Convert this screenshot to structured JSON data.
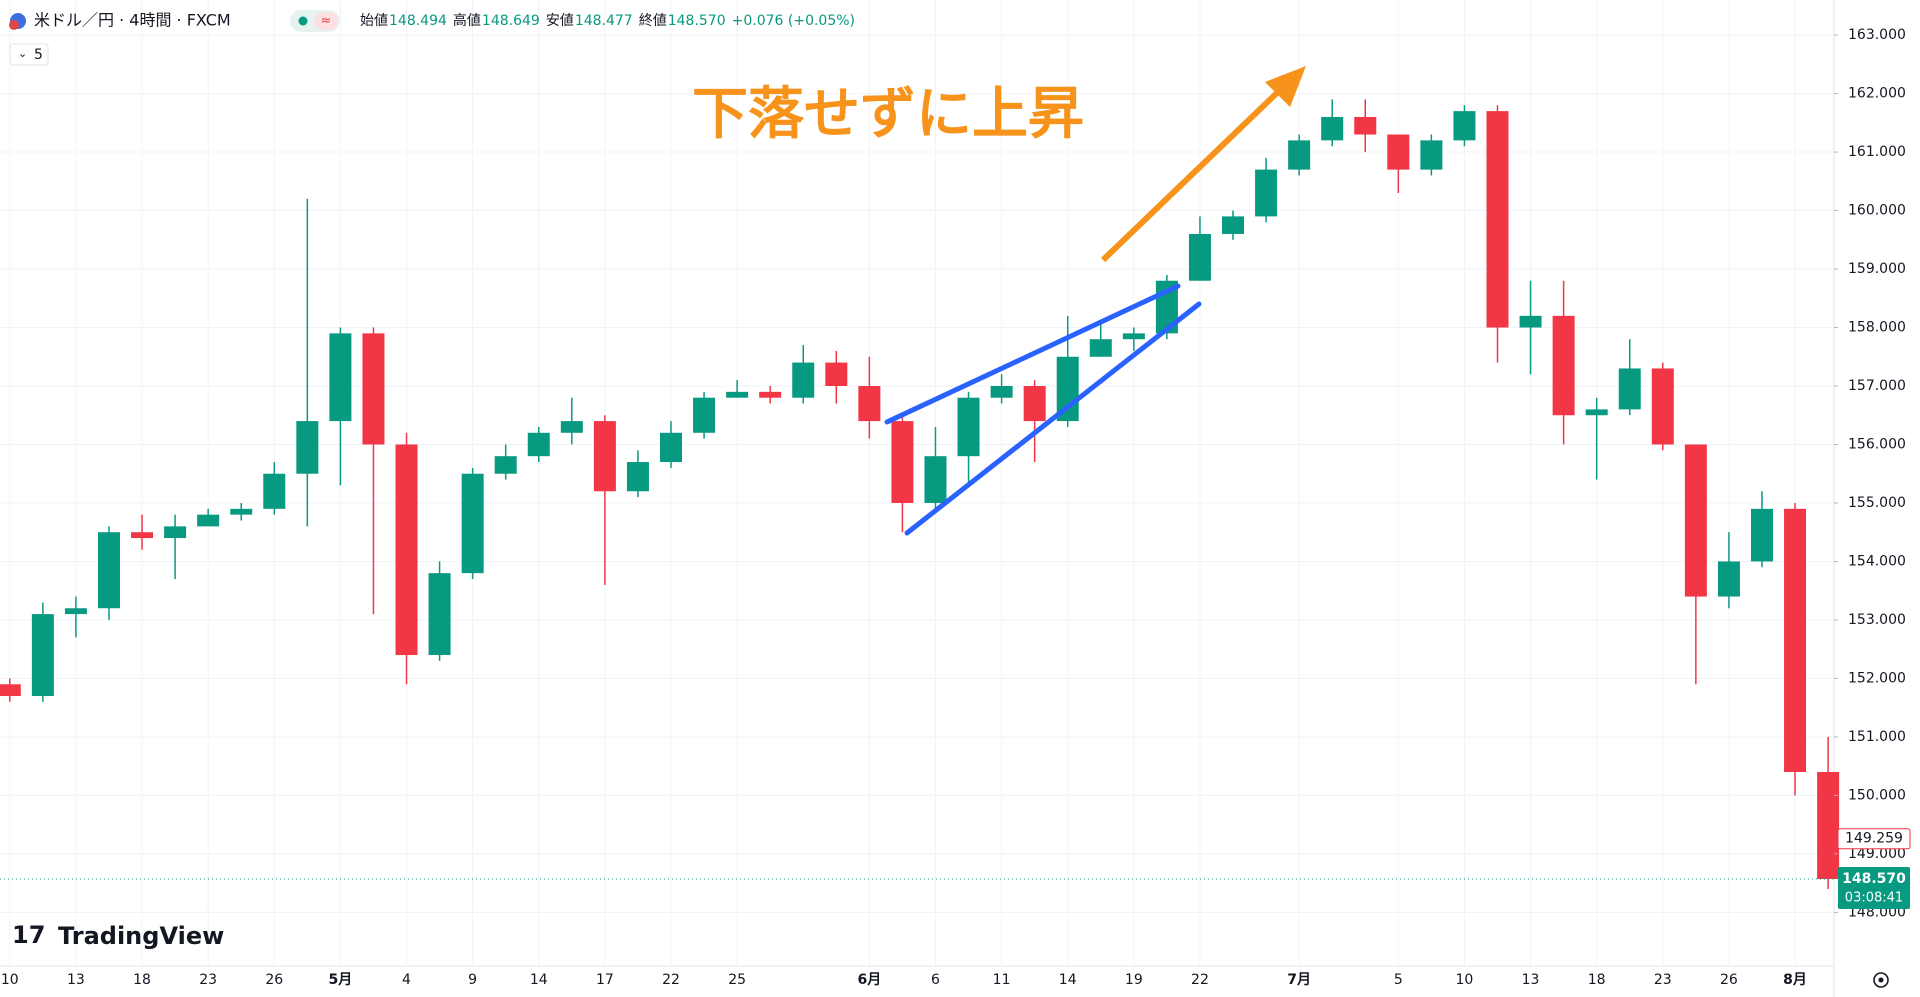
{
  "header": {
    "symbol": "米ドル／円 · 4時間 · FXCM",
    "indicator_count": "5",
    "ohlc": [
      {
        "label": "始値",
        "value": "148.494"
      },
      {
        "label": "高値",
        "value": "148.649"
      },
      {
        "label": "安値",
        "value": "148.477"
      },
      {
        "label": "終値",
        "value": "148.570"
      }
    ],
    "change": "+0.076 (+0.05%)",
    "logo": "TradingView"
  },
  "chart_data": {
    "type": "candlestick",
    "annotation": "下落せずに上昇",
    "up_color": "#089981",
    "down_color": "#f23645",
    "grid": true,
    "categories": [
      "10",
      null,
      "13",
      null,
      "18",
      null,
      "23",
      null,
      "26",
      null,
      "5月",
      null,
      "4",
      null,
      "9",
      null,
      "14",
      null,
      "17",
      null,
      "22",
      null,
      "25",
      null,
      null,
      null,
      "6月",
      null,
      "6",
      null,
      "11",
      null,
      "14",
      null,
      "19",
      null,
      "22",
      null,
      null,
      "7月",
      null,
      null,
      "5",
      null,
      "10",
      null,
      "13",
      null,
      "18",
      null,
      "23",
      null,
      "26",
      null,
      "8月",
      null
    ],
    "open": [
      151.9,
      151.7,
      153.1,
      153.2,
      154.5,
      154.4,
      154.6,
      154.8,
      154.9,
      155.5,
      156.4,
      157.9,
      156.0,
      152.4,
      153.8,
      155.5,
      155.8,
      156.2,
      156.4,
      155.2,
      155.7,
      156.2,
      156.8,
      156.9,
      156.8,
      157.4,
      157.0,
      156.4,
      155.0,
      155.8,
      156.8,
      157.0,
      156.4,
      157.5,
      157.8,
      157.9,
      158.8,
      159.6,
      159.9,
      160.7,
      161.2,
      161.6,
      161.3,
      160.7,
      161.2,
      161.7,
      158.0,
      158.2,
      156.5,
      156.6,
      157.3,
      156.0,
      153.4,
      154.0,
      154.9,
      150.4
    ],
    "high": [
      152.0,
      153.3,
      153.4,
      154.6,
      154.8,
      154.8,
      154.9,
      155.0,
      155.7,
      160.2,
      158.0,
      158.0,
      156.2,
      154.0,
      155.6,
      156.0,
      156.3,
      156.8,
      156.5,
      155.9,
      156.4,
      156.9,
      157.1,
      157.0,
      157.7,
      157.6,
      157.5,
      156.5,
      156.3,
      156.9,
      157.2,
      157.1,
      158.2,
      158.1,
      158.0,
      158.9,
      159.9,
      160.0,
      160.9,
      161.3,
      161.9,
      161.9,
      161.3,
      161.3,
      161.8,
      161.8,
      158.8,
      158.8,
      156.8,
      157.8,
      157.4,
      156.0,
      154.5,
      155.2,
      155.0,
      151.0
    ],
    "low": [
      151.6,
      151.6,
      152.7,
      153.0,
      154.2,
      153.7,
      154.6,
      154.7,
      154.8,
      154.6,
      155.3,
      153.1,
      151.9,
      152.3,
      153.7,
      155.4,
      155.7,
      156.0,
      153.6,
      155.1,
      155.6,
      156.1,
      156.8,
      156.7,
      156.7,
      156.7,
      156.1,
      154.5,
      154.9,
      155.3,
      156.7,
      155.7,
      156.3,
      157.5,
      157.6,
      157.8,
      158.8,
      159.5,
      159.8,
      160.6,
      161.1,
      161.0,
      160.3,
      160.6,
      161.1,
      157.4,
      157.2,
      156.0,
      155.4,
      156.5,
      155.9,
      151.9,
      153.2,
      153.9,
      150.0,
      148.4
    ],
    "close": [
      151.7,
      153.1,
      153.2,
      154.5,
      154.4,
      154.6,
      154.8,
      154.9,
      155.5,
      156.4,
      157.9,
      156.0,
      152.4,
      153.8,
      155.5,
      155.8,
      156.2,
      156.4,
      155.2,
      155.7,
      156.2,
      156.8,
      156.9,
      156.8,
      157.4,
      157.0,
      156.4,
      155.0,
      155.8,
      156.8,
      157.0,
      156.4,
      157.5,
      157.8,
      157.9,
      158.8,
      159.6,
      159.9,
      160.7,
      161.2,
      161.6,
      161.3,
      160.7,
      161.2,
      161.7,
      158.0,
      158.2,
      156.5,
      156.6,
      157.3,
      156.0,
      153.4,
      154.0,
      154.9,
      150.4,
      148.57
    ],
    "ylim": [
      147.1,
      163.6
    ],
    "yticks": [
      {
        "value": 148,
        "label": "148.000"
      },
      {
        "value": 149,
        "label": "149.000"
      },
      {
        "value": 150,
        "label": "150.000"
      },
      {
        "value": 151,
        "label": "151.000"
      },
      {
        "value": 152,
        "label": "152.000"
      },
      {
        "value": 153,
        "label": "153.000"
      },
      {
        "value": 154,
        "label": "154.000"
      },
      {
        "value": 155,
        "label": "155.000"
      },
      {
        "value": 156,
        "label": "156.000"
      },
      {
        "value": 157,
        "label": "157.000"
      },
      {
        "value": 158,
        "label": "158.000"
      },
      {
        "value": 159,
        "label": "159.000"
      },
      {
        "value": 160,
        "label": "160.000"
      },
      {
        "value": 161,
        "label": "161.000"
      },
      {
        "value": 162,
        "label": "162.000"
      },
      {
        "value": 163,
        "label": "163.000"
      }
    ],
    "last_price": {
      "value": 148.57,
      "label": "148.570"
    },
    "countdown": "03:08:41",
    "ref_price": {
      "value": 149.259,
      "label": "149.259"
    }
  }
}
